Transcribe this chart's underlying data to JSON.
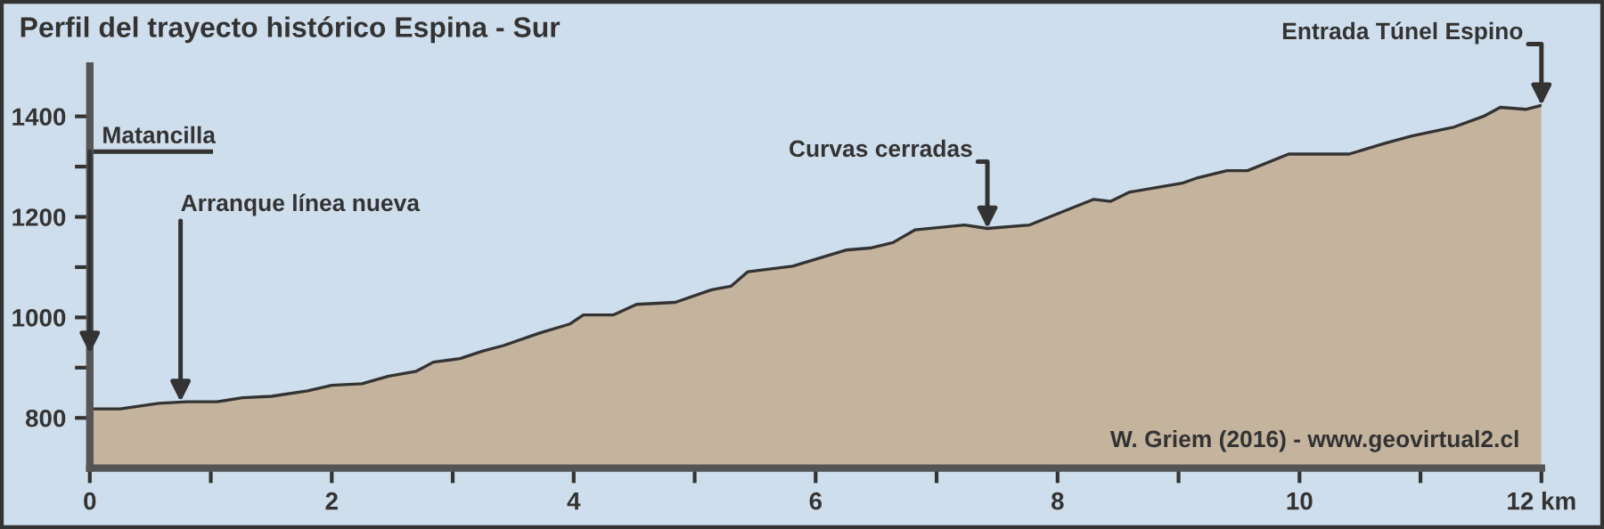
{
  "chart_data": {
    "type": "area",
    "title": "Perfil del trayecto histórico Espina - Sur",
    "x": [
      0,
      0.25,
      0.57,
      0.8,
      1.05,
      1.26,
      1.5,
      1.8,
      2.0,
      2.25,
      2.47,
      2.7,
      2.84,
      3.06,
      3.25,
      3.42,
      3.72,
      3.97,
      4.08,
      4.33,
      4.52,
      4.84,
      5.14,
      5.3,
      5.44,
      5.81,
      6.06,
      6.25,
      6.45,
      6.64,
      6.82,
      7.23,
      7.42,
      7.77,
      8.11,
      8.3,
      8.44,
      8.59,
      9.03,
      9.16,
      9.4,
      9.57,
      9.91,
      10.41,
      10.7,
      10.93,
      11.28,
      11.52,
      11.66,
      11.87,
      12.0
    ],
    "series": [
      {
        "color": "#c4b49e",
        "values": [
          818,
          818,
          829,
          832,
          832,
          840,
          843,
          854,
          865,
          868,
          883,
          893,
          911,
          918,
          933,
          944,
          969,
          987,
          1005,
          1005,
          1026,
          1030,
          1055,
          1062,
          1091,
          1102,
          1120,
          1134,
          1138,
          1149,
          1174,
          1184,
          1177,
          1184,
          1217,
          1235,
          1231,
          1249,
          1267,
          1278,
          1292,
          1292,
          1325,
          1325,
          1346,
          1361,
          1379,
          1400,
          1418,
          1414,
          1422
        ]
      }
    ],
    "xlim": [
      0,
      12
    ],
    "ylim": [
      700,
      1500
    ],
    "xticks": [
      0,
      {
        "value": 1,
        "label": null
      },
      2,
      {
        "value": 3,
        "label": null
      },
      4,
      {
        "value": 5,
        "label": null
      },
      6,
      {
        "value": 7,
        "label": null
      },
      8,
      {
        "value": 9,
        "label": null
      },
      10,
      {
        "value": 11,
        "label": null
      },
      {
        "value": 12,
        "label": "12 km"
      }
    ],
    "yticks": [
      800,
      {
        "value": 900,
        "label": null
      },
      1000,
      {
        "value": 1100,
        "label": null
      },
      1200,
      {
        "value": 1300,
        "label": null
      },
      1400
    ],
    "grid": false,
    "annotations": [
      "Matancilla",
      {
        "text": "Arranque línea nueva",
        "x": 0.75,
        "y": 832
      },
      {
        "text": "Curvas cerradas",
        "x": 7.42,
        "y": 1177
      },
      {
        "text": "Entrada Túnel Espino",
        "x": 12,
        "y": 1422
      },
      "W. Griem (2016) - www.geovirtual2.cl"
    ]
  }
}
